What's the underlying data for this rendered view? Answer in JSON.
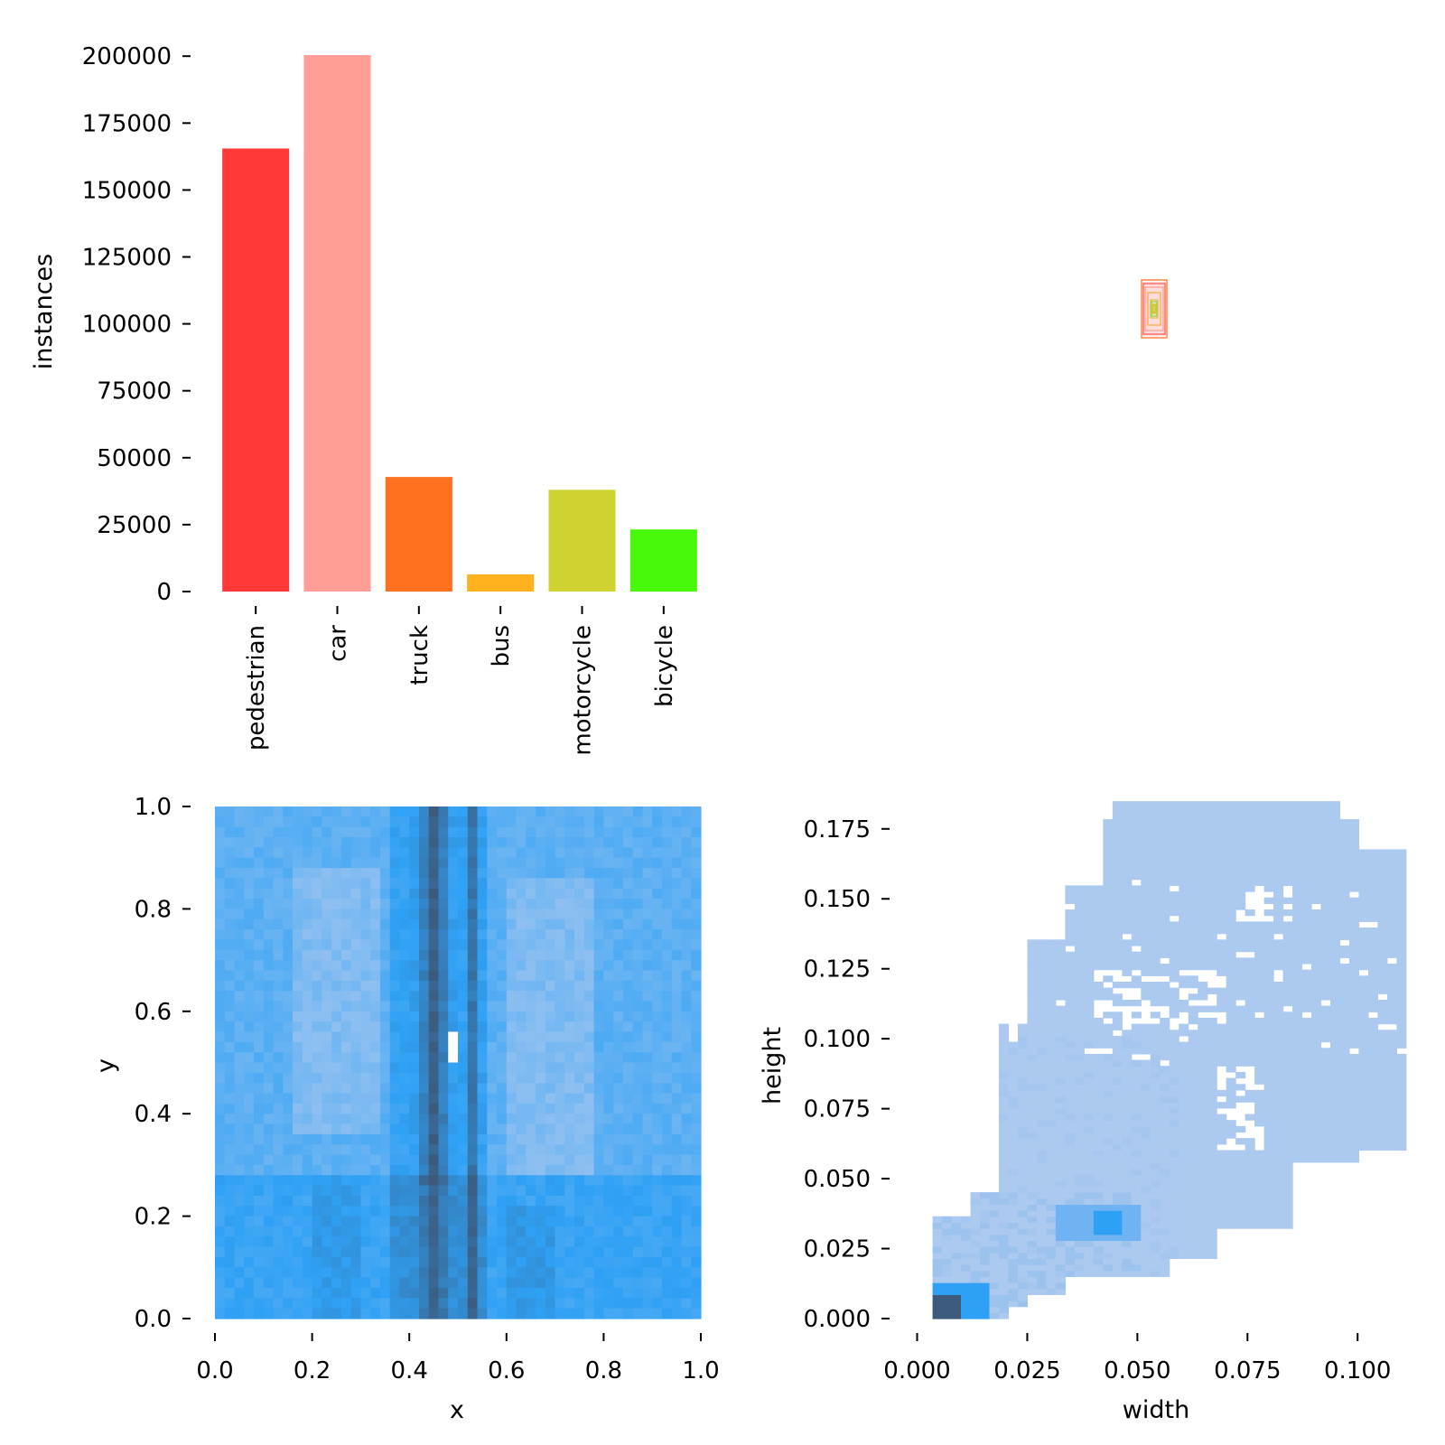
{
  "chart_data": [
    {
      "type": "bar",
      "categories": [
        "pedestrian",
        "car",
        "truck",
        "bus",
        "motorcycle",
        "bicycle"
      ],
      "values": [
        165500,
        200400,
        42800,
        6400,
        38000,
        23200
      ],
      "colors": [
        "#ff3838",
        "#ff9d97",
        "#ff701f",
        "#ffb21d",
        "#cfd231",
        "#48f90a"
      ],
      "ylabel": "instances",
      "ylim": [
        0,
        200400
      ],
      "yticks": [
        "0",
        "25000",
        "50000",
        "75000",
        "100000",
        "125000",
        "150000",
        "175000",
        "200000"
      ],
      "grid": false
    },
    {
      "type": "box-overlay",
      "description_values": {
        "center_x": 0.5,
        "center_y": 0.5,
        "box_colors": [
          "#ff3838",
          "#ff9d97",
          "#ff701f",
          "#ffb21d",
          "#cfd231",
          "#48f90a"
        ]
      }
    },
    {
      "type": "heatmap",
      "xlabel": "x",
      "ylabel": "y",
      "xlim": [
        0,
        1
      ],
      "ylim": [
        0,
        1
      ],
      "xticks": [
        "0.0",
        "0.2",
        "0.4",
        "0.6",
        "0.8",
        "1.0"
      ],
      "yticks": [
        "0.0",
        "0.2",
        "0.4",
        "0.6",
        "0.8",
        "1.0"
      ],
      "bins": 50,
      "colors": [
        "#acc9ef",
        "#2fa1f5",
        "#3c5a7c"
      ]
    },
    {
      "type": "heatmap",
      "xlabel": "width",
      "ylabel": "height",
      "xlim": [
        -0.004,
        0.11
      ],
      "ylim": [
        0,
        0.183
      ],
      "xticks": [
        "0.000",
        "0.025",
        "0.050",
        "0.075",
        "0.100"
      ],
      "yticks": [
        "0.000",
        "0.025",
        "0.050",
        "0.075",
        "0.100",
        "0.125",
        "0.150",
        "0.175"
      ],
      "colors": [
        "#acc9ef",
        "#2fa1f5",
        "#3c5a7c"
      ]
    }
  ]
}
